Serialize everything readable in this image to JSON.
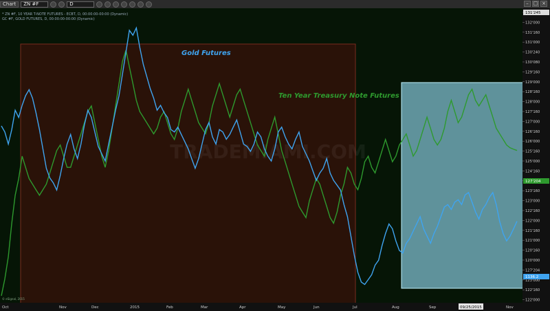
{
  "toolbar": {
    "chart_label": "Chart",
    "symbol_value": "ZN #F",
    "interval_value": "D"
  },
  "legend": {
    "line1": "* ZN #F, 10 YEAR T-NOTE FUTURES - ECBT, D, 00:00:00-00:00 (Dynamic)",
    "line2": "GC #F, GOLD FUTURES, D, 00:00:00-00:00 (Dynamic)"
  },
  "watermark": "TRADEMIAMI.COM",
  "copyright": "© eSignal, 2015",
  "colors": {
    "gold_line": "#3fa4f0",
    "tnote_line": "#2e9a2e",
    "brown_box": "#2a1208",
    "blue_box": "#9be6ff",
    "background": "#061506"
  },
  "chart_data": {
    "type": "line",
    "x_axis_labels": [
      "Oct",
      "Nov",
      "Dec",
      "2015",
      "Feb",
      "Mar",
      "Apr",
      "May",
      "Jun",
      "Jul",
      "Aug",
      "Sep",
      "09/25/2015",
      "Nov"
    ],
    "y_axis_labels": [
      "132'240",
      "132'000",
      "131'160",
      "131'000",
      "130'240",
      "130'080",
      "129'160",
      "129'000",
      "128'160",
      "128'000",
      "127'160",
      "127'000",
      "126'160",
      "126'000",
      "125'160",
      "125'000",
      "124'160",
      "124'000",
      "123'160",
      "123'000",
      "122'160",
      "122'000",
      "121'160",
      "121'000",
      "120'160",
      "120'000",
      "127'204",
      "123'000",
      "122'160",
      "122'000"
    ],
    "annotations": [
      "Gold Futures",
      "Ten Year Treasury Note Futures"
    ],
    "last_price_badges": [
      "131'245",
      "127'204",
      "1136.2"
    ],
    "series": [
      {
        "name": "Gold Futures",
        "x": [
          0,
          1,
          2,
          3,
          4,
          5,
          6,
          7,
          8,
          9,
          10,
          11,
          12,
          13,
          14,
          15,
          16,
          17,
          18,
          19,
          20,
          21,
          22,
          23,
          24,
          25,
          26,
          27,
          28,
          29,
          30,
          31,
          32,
          33,
          34,
          35,
          36,
          37,
          38,
          39,
          40,
          41,
          42,
          43,
          44,
          45,
          46,
          47,
          48,
          49,
          50,
          51,
          52,
          53,
          54,
          55,
          56,
          57,
          58,
          59,
          60,
          61,
          62,
          63,
          64,
          65,
          66,
          67,
          68,
          69,
          70,
          71,
          72,
          73,
          74,
          75,
          76,
          77,
          78,
          79,
          80,
          81,
          82,
          83,
          84,
          85,
          86,
          87,
          88,
          89,
          90,
          91,
          92,
          93,
          94,
          95,
          96,
          97,
          98,
          99,
          100,
          101,
          102,
          103,
          104,
          105,
          106,
          107,
          108,
          109,
          110,
          111,
          112,
          113,
          114,
          115,
          116,
          117,
          118,
          119,
          120,
          121,
          122,
          123,
          124,
          125,
          126,
          127,
          128,
          129,
          130,
          131,
          132,
          133,
          134,
          135,
          136,
          137,
          138,
          139,
          140,
          141,
          142,
          143,
          144,
          145,
          146,
          147,
          148,
          149
        ],
        "values": [
          1215,
          1210,
          1200,
          1212,
          1228,
          1222,
          1232,
          1240,
          1245,
          1238,
          1226,
          1212,
          1196,
          1180,
          1172,
          1168,
          1162,
          1174,
          1188,
          1200,
          1208,
          1196,
          1188,
          1200,
          1216,
          1228,
          1222,
          1210,
          1198,
          1192,
          1186,
          1200,
          1214,
          1228,
          1240,
          1258,
          1276,
          1294,
          1290,
          1296,
          1280,
          1266,
          1256,
          1246,
          1238,
          1228,
          1232,
          1226,
          1222,
          1212,
          1210,
          1214,
          1208,
          1202,
          1196,
          1188,
          1180,
          1188,
          1200,
          1212,
          1218,
          1206,
          1200,
          1212,
          1210,
          1204,
          1208,
          1214,
          1220,
          1210,
          1200,
          1198,
          1194,
          1200,
          1210,
          1206,
          1196,
          1190,
          1186,
          1196,
          1210,
          1214,
          1206,
          1200,
          1196,
          1204,
          1210,
          1198,
          1192,
          1186,
          1178,
          1170,
          1176,
          1180,
          1188,
          1176,
          1170,
          1166,
          1162,
          1150,
          1140,
          1124,
          1108,
          1094,
          1086,
          1084,
          1088,
          1092,
          1100,
          1104,
          1116,
          1126,
          1134,
          1130,
          1120,
          1112,
          1110,
          1118,
          1122,
          1128,
          1134,
          1140,
          1130,
          1124,
          1118,
          1126,
          1132,
          1140,
          1148,
          1150,
          1146,
          1152,
          1154,
          1150,
          1158,
          1160,
          1152,
          1144,
          1138,
          1146,
          1150,
          1156,
          1160,
          1150,
          1136,
          1126,
          1120,
          1124,
          1130,
          1136.2
        ],
        "ylim": [
          1070,
          1310
        ]
      },
      {
        "name": "Ten Year Treasury Note Futures",
        "x": [
          0,
          1,
          2,
          3,
          4,
          5,
          6,
          7,
          8,
          9,
          10,
          11,
          12,
          13,
          14,
          15,
          16,
          17,
          18,
          19,
          20,
          21,
          22,
          23,
          24,
          25,
          26,
          27,
          28,
          29,
          30,
          31,
          32,
          33,
          34,
          35,
          36,
          37,
          38,
          39,
          40,
          41,
          42,
          43,
          44,
          45,
          46,
          47,
          48,
          49,
          50,
          51,
          52,
          53,
          54,
          55,
          56,
          57,
          58,
          59,
          60,
          61,
          62,
          63,
          64,
          65,
          66,
          67,
          68,
          69,
          70,
          71,
          72,
          73,
          74,
          75,
          76,
          77,
          78,
          79,
          80,
          81,
          82,
          83,
          84,
          85,
          86,
          87,
          88,
          89,
          90,
          91,
          92,
          93,
          94,
          95,
          96,
          97,
          98,
          99,
          100,
          101,
          102,
          103,
          104,
          105,
          106,
          107,
          108,
          109,
          110,
          111,
          112,
          113,
          114,
          115,
          116,
          117,
          118,
          119,
          120,
          121,
          122,
          123,
          124,
          125,
          126,
          127,
          128,
          129,
          130,
          131,
          132,
          133,
          134,
          135,
          136,
          137,
          138,
          139,
          140,
          141,
          142,
          143,
          144,
          145,
          146,
          147,
          148,
          149
        ],
        "values": [
          122.0,
          122.6,
          123.4,
          124.6,
          125.6,
          126.2,
          127.0,
          126.6,
          126.2,
          126.0,
          125.8,
          125.6,
          125.8,
          126.0,
          126.4,
          126.8,
          127.2,
          127.4,
          127.0,
          126.6,
          126.6,
          127.0,
          127.4,
          127.8,
          128.2,
          128.6,
          128.8,
          128.2,
          127.6,
          127.0,
          126.6,
          127.2,
          128.0,
          128.8,
          129.6,
          130.4,
          130.8,
          130.2,
          129.6,
          129.0,
          128.6,
          128.4,
          128.2,
          128.0,
          127.8,
          128.0,
          128.4,
          128.6,
          128.2,
          127.8,
          127.6,
          128.0,
          128.6,
          129.0,
          129.4,
          129.0,
          128.6,
          128.2,
          128.0,
          127.8,
          128.2,
          128.8,
          129.2,
          129.6,
          129.2,
          128.8,
          128.4,
          128.8,
          129.2,
          129.4,
          129.0,
          128.6,
          128.2,
          127.8,
          127.4,
          127.2,
          127.0,
          127.6,
          128.0,
          128.4,
          127.8,
          127.2,
          126.8,
          126.4,
          126.0,
          125.6,
          125.2,
          125.0,
          124.8,
          125.4,
          125.8,
          126.2,
          126.0,
          125.6,
          125.2,
          124.8,
          124.6,
          125.0,
          125.6,
          126.0,
          126.6,
          126.4,
          126.0,
          125.8,
          126.2,
          126.8,
          127.0,
          126.6,
          126.4,
          126.8,
          127.2,
          127.6,
          127.2,
          126.8,
          127.0,
          127.4,
          127.6,
          127.8,
          127.4,
          127.0,
          127.2,
          127.6,
          128.0,
          128.4,
          128.0,
          127.6,
          127.4,
          127.6,
          128.0,
          128.6,
          129.0,
          128.6,
          128.2,
          128.4,
          128.8,
          129.2,
          129.4,
          129.0,
          128.8,
          129.0,
          129.2,
          128.8,
          128.4,
          128.0,
          127.8,
          127.6,
          127.4,
          127.3,
          127.25,
          127.204
        ],
        "ylim": [
          121.8,
          132.2
        ]
      }
    ],
    "grid": false
  }
}
